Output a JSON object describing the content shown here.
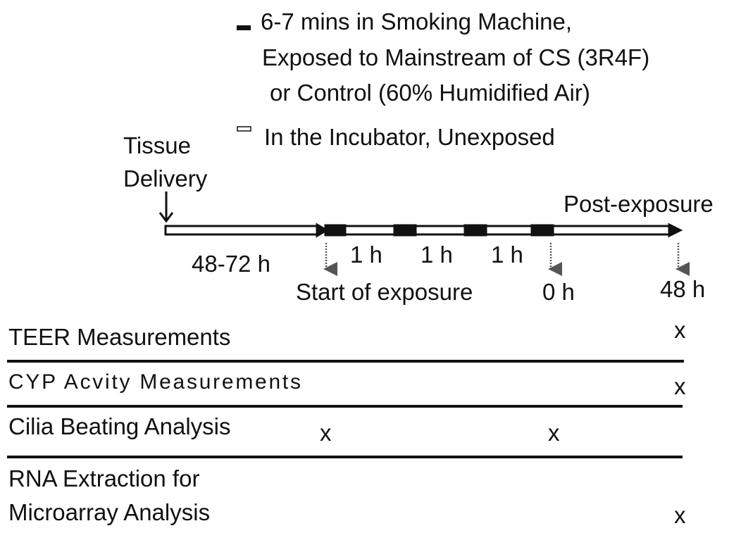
{
  "legend": [
    {
      "lines": [
        "6-7 mins in Smoking Machine,",
        "Exposed to Mainstream of CS (3R4F)",
        "or Control (60% Humidified Air)"
      ]
    },
    {
      "lines": [
        "In the Incubator, Unexposed"
      ]
    }
  ],
  "tissue_delivery": [
    "Tissue",
    "Delivery"
  ],
  "post_exposure": "Post-exposure",
  "durations": [
    "48-72 h",
    "1 h",
    "1 h",
    "1 h"
  ],
  "timepoints": [
    "Start of exposure",
    "0 h",
    "48 h"
  ],
  "rows": [
    {
      "label": [
        "TEER Measurements"
      ],
      "marks": [
        "x"
      ]
    },
    {
      "label": [
        "CYP Acvity Measurements"
      ],
      "marks": [
        "x"
      ]
    },
    {
      "label": [
        "Cilia Beating Analysis"
      ],
      "marks": [
        "x",
        "x"
      ]
    },
    {
      "label": [
        "RNA Extraction for",
        "Microarray Analysis"
      ],
      "marks": [
        "x"
      ]
    }
  ]
}
